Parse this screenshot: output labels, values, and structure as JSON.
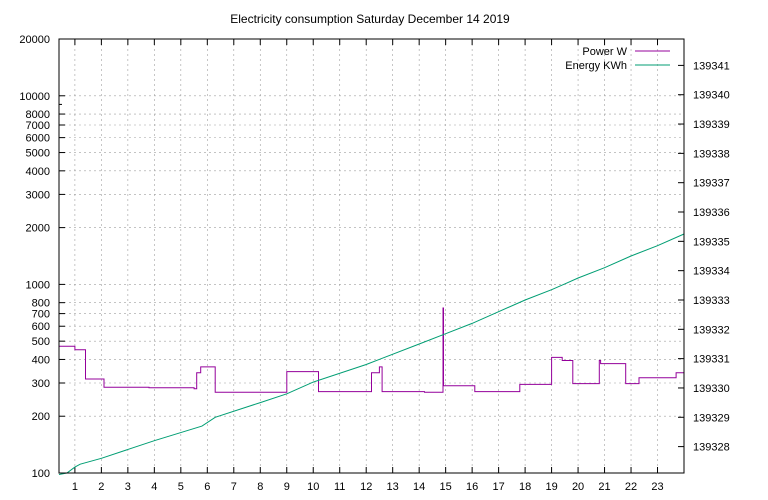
{
  "chart_data": {
    "type": "line",
    "title": "Electricity consumption Saturday December 14 2019",
    "xlabel": "",
    "ylabel": "",
    "x_ticks": [
      "1",
      "2",
      "3",
      "4",
      "5",
      "6",
      "7",
      "8",
      "9",
      "10",
      "11",
      "12",
      "13",
      "14",
      "15",
      "16",
      "17",
      "18",
      "19",
      "20",
      "21",
      "22",
      "23"
    ],
    "xlim": [
      0.4,
      24.0
    ],
    "y_left": {
      "scale": "log",
      "lim": [
        100,
        20000
      ],
      "ticks": [
        100,
        200,
        300,
        400,
        500,
        600,
        700,
        800,
        1000,
        2000,
        3000,
        4000,
        5000,
        6000,
        7000,
        8000,
        10000,
        20000
      ],
      "tick_labels": [
        "100",
        "200",
        "300",
        "400",
        "500",
        "600",
        "700",
        "800",
        "1000",
        "2000",
        "3000",
        "4000",
        "5000",
        "6000",
        "7000",
        "8000",
        "10000",
        "20000"
      ]
    },
    "y_right": {
      "scale": "linear",
      "lim": [
        139327.1,
        139341.9
      ],
      "ticks": [
        139328,
        139329,
        139330,
        139331,
        139332,
        139333,
        139334,
        139335,
        139336,
        139337,
        139338,
        139339,
        139340,
        139341
      ],
      "tick_labels": [
        "139328",
        "139329",
        "139330",
        "139331",
        "139332",
        "139333",
        "139334",
        "139335",
        "139336",
        "139337",
        "139338",
        "139339",
        "139340",
        "139341"
      ]
    },
    "grid": true,
    "legend_position": "top-right",
    "series": [
      {
        "name": "Power W",
        "axis": "left",
        "color": "#94009b",
        "step": true,
        "x": [
          0.4,
          1.0,
          1.4,
          2.1,
          3.8,
          5.5,
          5.6,
          5.75,
          6.3,
          8.9,
          9.0,
          10.2,
          11.8,
          12.2,
          12.4,
          12.5,
          12.6,
          14.2,
          14.9,
          14.92,
          16.1,
          17.8,
          19.0,
          19.4,
          19.8,
          20.8,
          20.85,
          21.8,
          22.3,
          23.7,
          24.0
        ],
        "values": [
          470,
          450,
          315,
          285,
          283,
          280,
          340,
          365,
          268,
          268,
          345,
          270,
          270,
          340,
          340,
          365,
          270,
          268,
          750,
          290,
          270,
          295,
          410,
          395,
          298,
          395,
          380,
          298,
          320,
          340,
          340
        ]
      },
      {
        "name": "Energy KWh",
        "axis": "right",
        "color": "#009e73",
        "step": false,
        "x": [
          0.4,
          0.7,
          1.0,
          1.2,
          2.0,
          4.0,
          5.8,
          6.3,
          8.0,
          9.0,
          10.0,
          12.0,
          14.0,
          15.0,
          16.0,
          17.0,
          18.0,
          19.0,
          19.5,
          20.0,
          21.0,
          22.0,
          23.0,
          24.0
        ],
        "values": [
          139327.05,
          139327.1,
          139327.3,
          139327.4,
          139327.6,
          139328.2,
          139328.7,
          139329.0,
          139329.5,
          139329.8,
          139330.2,
          139330.8,
          139331.5,
          139331.85,
          139332.2,
          139332.6,
          139333.0,
          139333.35,
          139333.55,
          139333.75,
          139334.1,
          139334.5,
          139334.85,
          139335.25
        ]
      }
    ]
  }
}
